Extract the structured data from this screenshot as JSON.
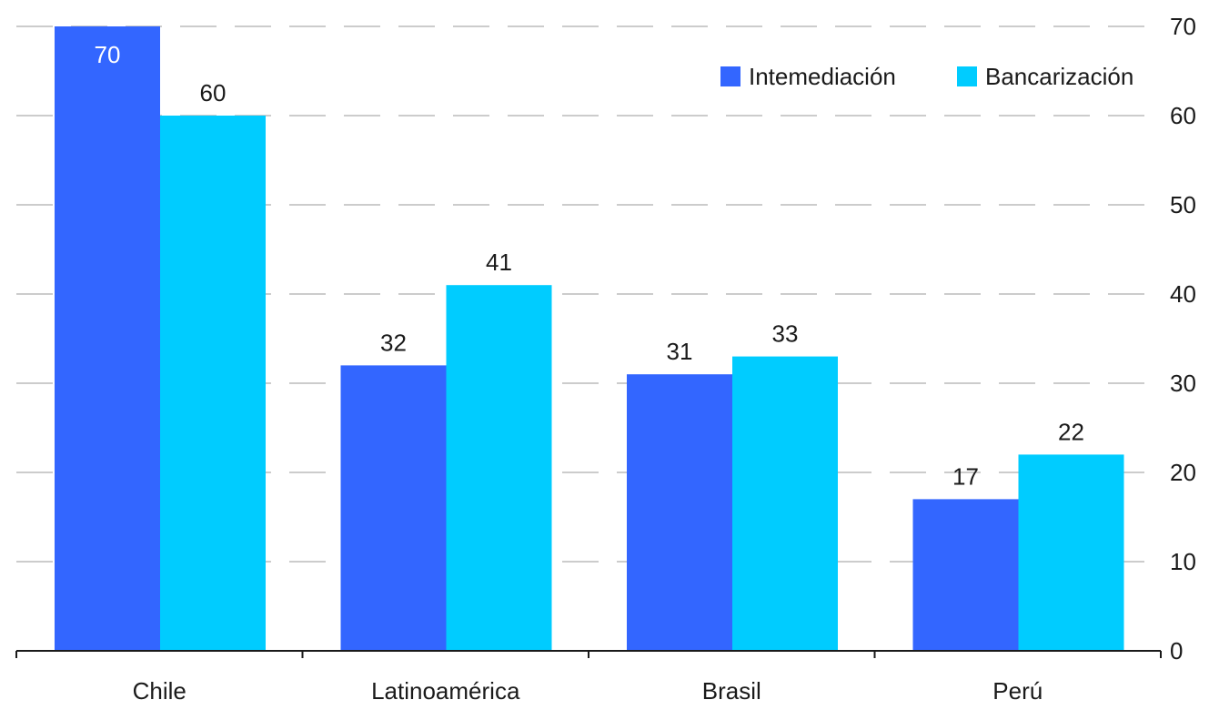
{
  "chart_data": {
    "type": "bar",
    "categories": [
      "Chile",
      "Latinoamérica",
      "Brasil",
      "Perú"
    ],
    "series": [
      {
        "name": "Intemediación",
        "values": [
          70,
          32,
          31,
          17
        ],
        "color": "#3366ff"
      },
      {
        "name": "Bancarización",
        "values": [
          60,
          41,
          33,
          22
        ],
        "color": "#00ccff"
      }
    ],
    "ylim": [
      0,
      70
    ],
    "yticks": [
      0,
      10,
      20,
      30,
      40,
      50,
      60,
      70
    ],
    "y_axis_side": "right",
    "grid": true,
    "grid_style": "dashed",
    "legend_position": "top-right",
    "data_labels": true
  }
}
